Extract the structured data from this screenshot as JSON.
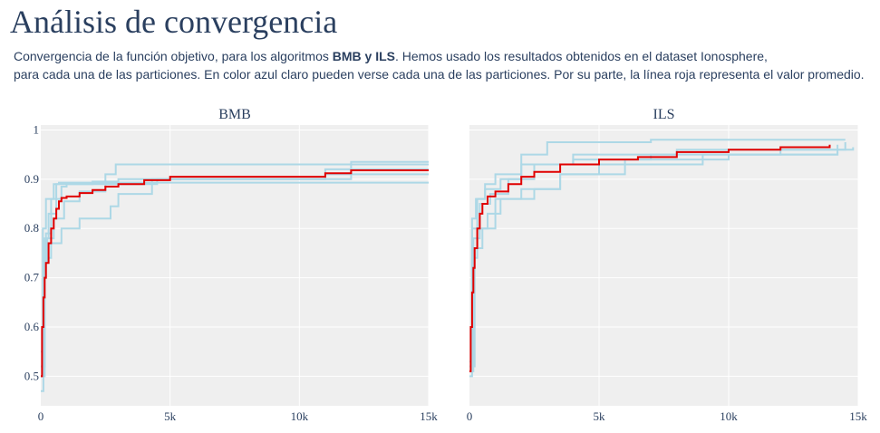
{
  "page": {
    "title": "Análisis de convergencia",
    "description": {
      "line1_before": "Convergencia de la función objetivo, para los algoritmos ",
      "line1_bold": "BMB y ILS",
      "line1_after": ". Hemos usado los resultados obtenidos en el dataset Ionosphere,",
      "line2": "para cada una de las particiones. En color azul claro pueden verse cada una de las particiones. Por su parte, la línea roja representa el valor promedio."
    }
  },
  "colors": {
    "partition": "#add8e6",
    "average": "#e00000",
    "plot_bg": "#efefef",
    "grid": "#ffffff",
    "text": "#2a3f5f"
  },
  "chart_data": [
    {
      "type": "line",
      "title": "BMB",
      "xlabel": "",
      "ylabel": "",
      "xlim": [
        0,
        15000
      ],
      "ylim": [
        0.44,
        1.01
      ],
      "x_ticks": [
        0,
        5000,
        10000,
        15000
      ],
      "x_tick_labels": [
        "0",
        "5k",
        "10k",
        "15k"
      ],
      "y_ticks": [
        0.5,
        0.6,
        0.7,
        0.8,
        0.9,
        1
      ],
      "y_tick_labels": [
        "0.5",
        "0.6",
        "0.7",
        "0.8",
        "0.9",
        "1"
      ],
      "grid": true,
      "series": [
        {
          "role": "partition",
          "x": [
            0,
            100,
            200,
            400,
            800,
            1000,
            2500,
            2900,
            15000
          ],
          "y": [
            0.47,
            0.7,
            0.79,
            0.86,
            0.885,
            0.89,
            0.91,
            0.93,
            0.93
          ]
        },
        {
          "role": "partition",
          "x": [
            0,
            150,
            300,
            600,
            700,
            2200,
            15000
          ],
          "y": [
            0.5,
            0.78,
            0.83,
            0.89,
            0.893,
            0.893,
            0.893
          ]
        },
        {
          "role": "partition",
          "x": [
            0,
            100,
            250,
            500,
            900,
            1500,
            2500,
            4500,
            11000,
            15000
          ],
          "y": [
            0.5,
            0.73,
            0.78,
            0.82,
            0.855,
            0.875,
            0.89,
            0.9,
            0.92,
            0.92
          ]
        },
        {
          "role": "partition",
          "x": [
            0,
            150,
            400,
            800,
            1500,
            2700,
            3000,
            4300,
            11000,
            15000
          ],
          "y": [
            0.52,
            0.74,
            0.77,
            0.8,
            0.82,
            0.845,
            0.87,
            0.9,
            0.91,
            0.91
          ]
        },
        {
          "role": "partition",
          "x": [
            0,
            80,
            200,
            500,
            1000,
            2000,
            3000,
            4500,
            12000,
            15000
          ],
          "y": [
            0.55,
            0.8,
            0.86,
            0.89,
            0.89,
            0.895,
            0.9,
            0.9,
            0.935,
            0.935
          ]
        },
        {
          "role": "average",
          "x": [
            0,
            50,
            100,
            150,
            200,
            300,
            400,
            500,
            600,
            700,
            800,
            1000,
            1500,
            2000,
            2500,
            3000,
            4000,
            5000,
            10000,
            11000,
            12000,
            15000
          ],
          "y": [
            0.5,
            0.6,
            0.66,
            0.7,
            0.73,
            0.77,
            0.8,
            0.82,
            0.84,
            0.855,
            0.862,
            0.865,
            0.872,
            0.878,
            0.885,
            0.89,
            0.898,
            0.905,
            0.905,
            0.912,
            0.918,
            0.918
          ]
        }
      ]
    },
    {
      "type": "line",
      "title": "ILS",
      "xlabel": "",
      "ylabel": "",
      "xlim": [
        0,
        15000
      ],
      "ylim": [
        0.44,
        1.01
      ],
      "x_ticks": [
        0,
        5000,
        10000,
        15000
      ],
      "x_tick_labels": [
        "0",
        "5k",
        "10k",
        "15k"
      ],
      "y_ticks": [
        0.5,
        0.6,
        0.7,
        0.8,
        0.9,
        1
      ],
      "y_tick_labels": [
        "0.5",
        "0.6",
        "0.7",
        "0.8",
        "0.9",
        "1"
      ],
      "grid": true,
      "series": [
        {
          "role": "partition",
          "x": [
            0,
            100,
            300,
            600,
            1000,
            2000,
            3000,
            7000,
            14500
          ],
          "y": [
            0.51,
            0.8,
            0.86,
            0.89,
            0.91,
            0.95,
            0.975,
            0.98,
            0.98
          ]
        },
        {
          "role": "partition",
          "x": [
            0,
            150,
            400,
            800,
            1500,
            2500,
            4000,
            8000,
            14800
          ],
          "y": [
            0.51,
            0.78,
            0.85,
            0.87,
            0.9,
            0.93,
            0.95,
            0.96,
            0.965
          ]
        },
        {
          "role": "partition",
          "x": [
            0,
            100,
            300,
            700,
            1200,
            2500,
            3500,
            6000,
            10000,
            14200
          ],
          "y": [
            0.5,
            0.74,
            0.8,
            0.83,
            0.86,
            0.88,
            0.91,
            0.94,
            0.95,
            0.955
          ]
        },
        {
          "role": "partition",
          "x": [
            0,
            200,
            500,
            1000,
            2000,
            3500,
            5000,
            9000,
            14200
          ],
          "y": [
            0.52,
            0.76,
            0.8,
            0.86,
            0.88,
            0.91,
            0.93,
            0.95,
            0.97
          ]
        },
        {
          "role": "partition",
          "x": [
            0,
            100,
            250,
            600,
            1200,
            2000,
            4000,
            7000,
            12000,
            14500
          ],
          "y": [
            0.53,
            0.82,
            0.86,
            0.88,
            0.9,
            0.93,
            0.94,
            0.95,
            0.96,
            0.975
          ]
        },
        {
          "role": "average",
          "x": [
            0,
            50,
            100,
            150,
            200,
            300,
            400,
            500,
            700,
            1000,
            1500,
            2000,
            2500,
            3500,
            5000,
            6500,
            8000,
            10000,
            12000,
            13900
          ],
          "y": [
            0.51,
            0.6,
            0.67,
            0.72,
            0.76,
            0.8,
            0.83,
            0.85,
            0.865,
            0.875,
            0.89,
            0.905,
            0.915,
            0.93,
            0.94,
            0.945,
            0.955,
            0.96,
            0.965,
            0.97
          ]
        }
      ]
    }
  ]
}
